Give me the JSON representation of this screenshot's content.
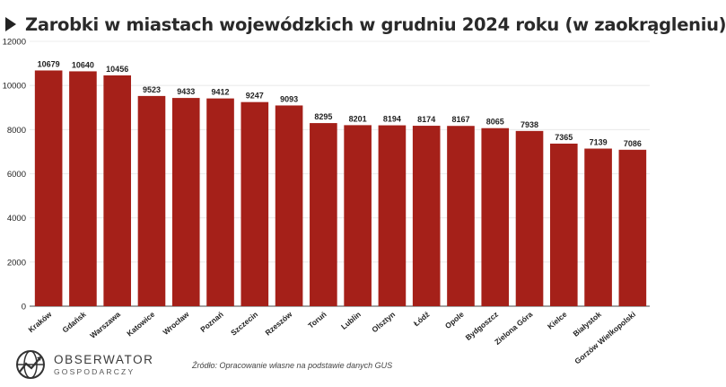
{
  "title": "Zarobki w miastach wojewódzkich w grudniu 2024 roku (w zaokrągleniu)",
  "source": "Źródło: Opracowanie własne na podstawie danych GUS",
  "logo": {
    "name": "OBSERWATOR",
    "subtitle": "GOSPODARCZY"
  },
  "chart_data": {
    "type": "bar",
    "title": "Zarobki w miastach wojewódzkich w grudniu 2024 roku (w zaokrągleniu)",
    "xlabel": "",
    "ylabel": "",
    "ylim": [
      0,
      12000
    ],
    "yticks": [
      0,
      2000,
      4000,
      6000,
      8000,
      10000,
      12000
    ],
    "grid": "horizontal",
    "bar_color": "#a52019",
    "categories": [
      "Kraków",
      "Gdańsk",
      "Warszawa",
      "Katowice",
      "Wrocław",
      "Poznań",
      "Szczecin",
      "Rzeszów",
      "Toruń",
      "Lublin",
      "Olsztyn",
      "Łódź",
      "Opole",
      "Bydgoszcz",
      "Zielona Góra",
      "Kielce",
      "Białystok",
      "Gorzów Wielkopolski"
    ],
    "values": [
      10679,
      10640,
      10456,
      9523,
      9433,
      9412,
      9247,
      9093,
      8295,
      8201,
      8194,
      8174,
      8167,
      8065,
      7938,
      7365,
      7139,
      7086
    ]
  }
}
